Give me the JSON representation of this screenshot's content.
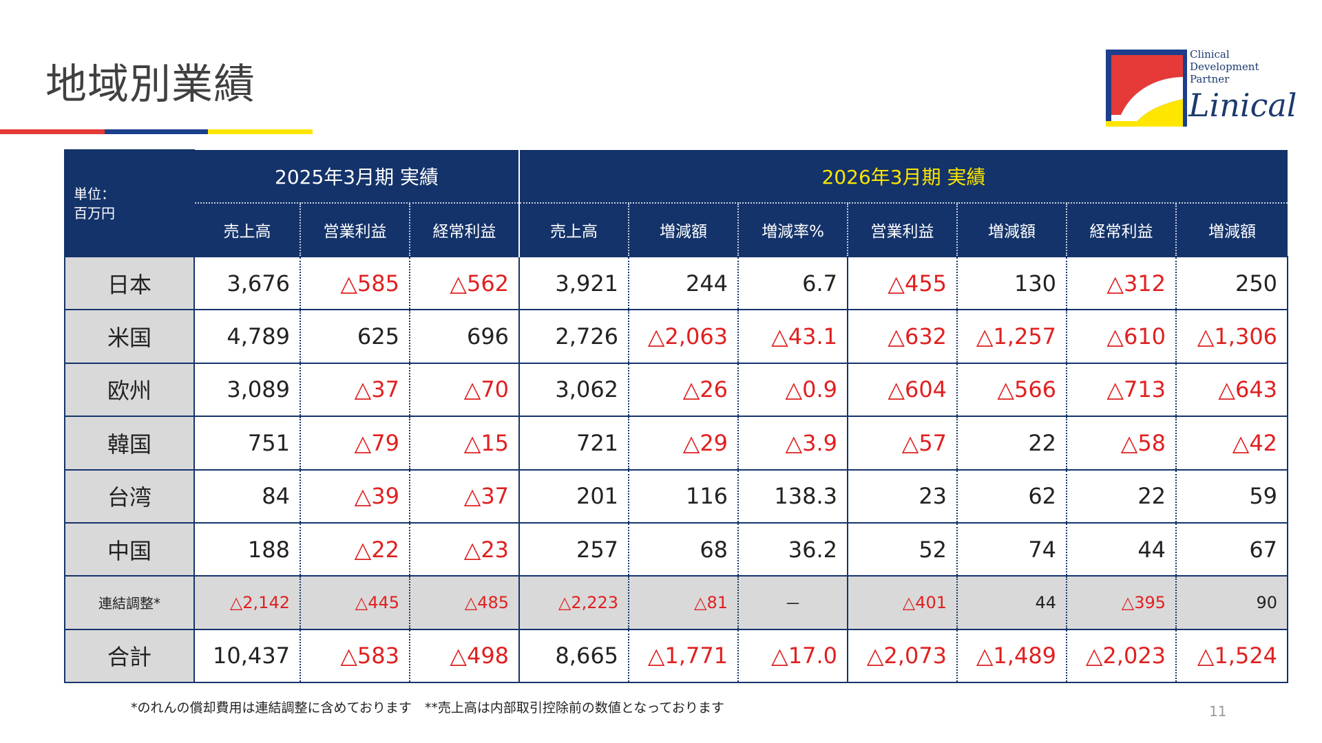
{
  "title": "地域別業績",
  "colors": {
    "red": "#e53a37",
    "blue": "#1c3f8c",
    "yellow": "#ffe600",
    "navy": "#14336a",
    "negative": "#e02020"
  },
  "logo": {
    "line1": "Clinical",
    "line2": "Development",
    "line3": "Partner",
    "name": "Linical"
  },
  "table": {
    "unit_line1": "単位：",
    "unit_line2": "百万円",
    "period_2025": "2025年3月期 実績",
    "period_2026": "2026年3月期 実績",
    "columns": [
      "売上高",
      "営業利益",
      "経常利益",
      "売上高",
      "増減額",
      "増減率%",
      "営業利益",
      "増減額",
      "経常利益",
      "増減額"
    ],
    "rows": [
      {
        "label": "日本",
        "values": [
          "3,676",
          "△585",
          "△562",
          "3,921",
          "244",
          "6.7",
          "△455",
          "130",
          "△312",
          "250"
        ]
      },
      {
        "label": "米国",
        "values": [
          "4,789",
          "625",
          "696",
          "2,726",
          "△2,063",
          "△43.1",
          "△632",
          "△1,257",
          "△610",
          "△1,306"
        ]
      },
      {
        "label": "欧州",
        "values": [
          "3,089",
          "△37",
          "△70",
          "3,062",
          "△26",
          "△0.9",
          "△604",
          "△566",
          "△713",
          "△643"
        ]
      },
      {
        "label": "韓国",
        "values": [
          "751",
          "△79",
          "△15",
          "721",
          "△29",
          "△3.9",
          "△57",
          "22",
          "△58",
          "△42"
        ]
      },
      {
        "label": "台湾",
        "values": [
          "84",
          "△39",
          "△37",
          "201",
          "116",
          "138.3",
          "23",
          "62",
          "22",
          "59"
        ]
      },
      {
        "label": "中国",
        "values": [
          "188",
          "△22",
          "△23",
          "257",
          "68",
          "36.2",
          "52",
          "74",
          "44",
          "67"
        ]
      },
      {
        "label": "連結調整*",
        "values": [
          "△2,142",
          "△445",
          "△485",
          "△2,223",
          "△81",
          "－",
          "△401",
          "44",
          "△395",
          "90"
        ]
      },
      {
        "label": "合計",
        "values": [
          "10,437",
          "△583",
          "△498",
          "8,665",
          "△1,771",
          "△17.0",
          "△2,073",
          "△1,489",
          "△2,023",
          "△1,524"
        ]
      }
    ]
  },
  "footnote": "*のれんの償却費用は連結調整に含めております　**売上高は内部取引控除前の数値となっております",
  "page_number": "11"
}
